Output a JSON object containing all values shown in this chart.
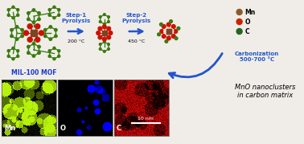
{
  "bg_color": "#f0ede8",
  "title_color": "#1a3acc",
  "step1_label": "Step-1\nPyrolysis",
  "step1_temp": "200 °C",
  "step2_label": "Step-2\nPyrolysis",
  "step2_temp": "450 °C",
  "carbonization_label": "Carbonization\n500-700 °C",
  "mol_label": "MIL-100 MOF",
  "product_label": "MnO nanoclusters\nin carbon matrix",
  "scale_bar": "10 nm",
  "legend_items": [
    {
      "label": "Mn",
      "color": "#8B5A2B"
    },
    {
      "label": "O",
      "color": "#cc2200"
    },
    {
      "label": "C",
      "color": "#226622"
    }
  ],
  "arrow_color": "#2255cc",
  "mol_green": "#3a7a10",
  "mol_red": "#cc1100",
  "mol_brown": "#7a4520",
  "mol_orange": "#c85a10"
}
